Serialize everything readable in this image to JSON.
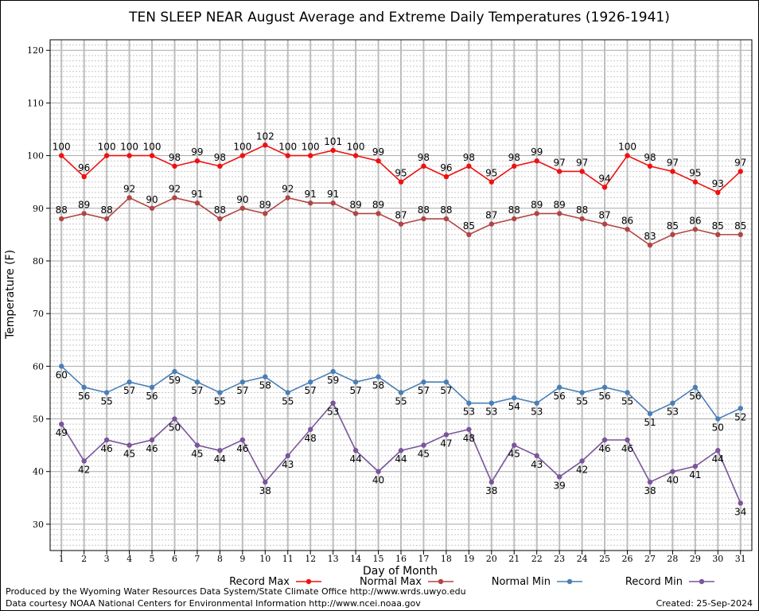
{
  "chart_data": {
    "type": "line",
    "title": "TEN SLEEP NEAR August Average and Extreme Daily Temperatures (1926-1941)",
    "xlabel": "Day of Month",
    "ylabel": "Temperature (F)",
    "x": [
      1,
      2,
      3,
      4,
      5,
      6,
      7,
      8,
      9,
      10,
      11,
      12,
      13,
      14,
      15,
      16,
      17,
      18,
      19,
      20,
      21,
      22,
      23,
      24,
      25,
      26,
      27,
      28,
      29,
      30,
      31
    ],
    "xlim": [
      0.5,
      31.5
    ],
    "ylim": [
      25,
      122
    ],
    "yticks": [
      30,
      40,
      50,
      60,
      70,
      80,
      90,
      100,
      110,
      120
    ],
    "grid": true,
    "legend_position": "bottom",
    "series": [
      {
        "name": "Record Max",
        "color": "#ee1111",
        "label_pos": "above",
        "values": [
          100,
          96,
          100,
          100,
          100,
          98,
          99,
          98,
          100,
          102,
          100,
          100,
          101,
          100,
          99,
          95,
          98,
          96,
          98,
          95,
          98,
          99,
          97,
          97,
          94,
          100,
          98,
          97,
          95,
          93,
          97
        ]
      },
      {
        "name": "Normal Max",
        "color": "#b04545",
        "label_pos": "above",
        "values": [
          88,
          89,
          88,
          92,
          90,
          92,
          91,
          88,
          90,
          89,
          92,
          91,
          91,
          89,
          89,
          87,
          88,
          88,
          85,
          87,
          88,
          89,
          89,
          88,
          87,
          86,
          83,
          85,
          86,
          85,
          85
        ]
      },
      {
        "name": "Normal Min",
        "color": "#4a7fb5",
        "label_pos": "below",
        "values": [
          60,
          56,
          55,
          57,
          56,
          59,
          57,
          55,
          57,
          58,
          55,
          57,
          59,
          57,
          58,
          55,
          57,
          57,
          53,
          53,
          54,
          53,
          56,
          55,
          56,
          55,
          51,
          53,
          56,
          50,
          52
        ]
      },
      {
        "name": "Record Min",
        "color": "#7a559a",
        "label_pos": "below",
        "values": [
          49,
          42,
          46,
          45,
          46,
          50,
          45,
          44,
          46,
          38,
          43,
          48,
          53,
          44,
          40,
          44,
          45,
          47,
          48,
          38,
          45,
          43,
          39,
          42,
          46,
          46,
          38,
          40,
          41,
          44,
          34
        ]
      }
    ]
  },
  "footer": {
    "produced_by": "Produced by the Wyoming Water Resources Data System/State Climate Office http://www.wrds.uwyo.edu",
    "courtesy": "Data courtesy NOAA National Centers for Environmental Information http://www.ncei.noaa.gov",
    "created": "Created:  25-Sep-2024"
  }
}
